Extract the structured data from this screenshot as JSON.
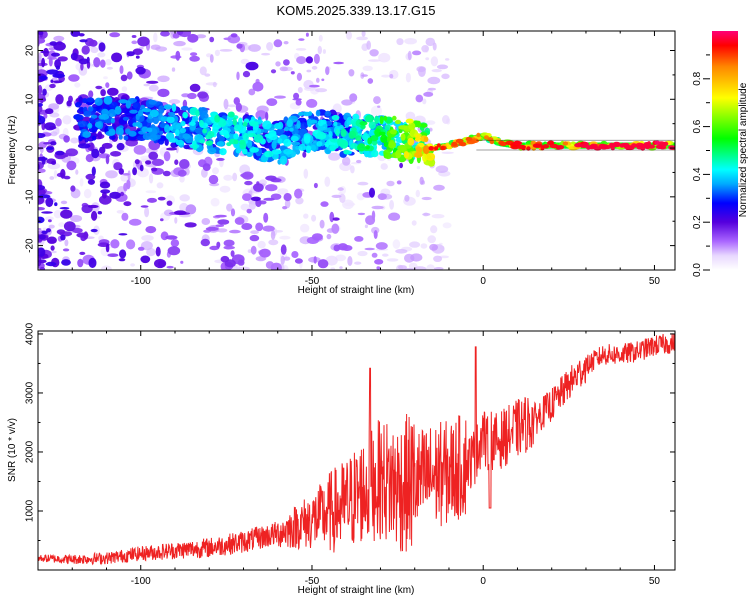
{
  "title": "KOM5.2025.339.13.17.G15",
  "chart_data": [
    {
      "type": "heatmap",
      "title": "KOM5.2025.339.13.17.G15",
      "xlabel": "Height of straight line (km)",
      "ylabel": "Frequency (Hz)",
      "xlim": [
        -130,
        56
      ],
      "ylim": [
        -25,
        24
      ],
      "x_ticks": [
        -100,
        -50,
        0,
        50
      ],
      "y_ticks": [
        -20,
        -10,
        0,
        10,
        20
      ],
      "colorbar": {
        "label": "Normalized spectral amplitude",
        "range": [
          0,
          1
        ],
        "ticks": [
          0.0,
          0.2,
          0.4,
          0.6,
          0.8
        ],
        "colors": [
          "#ffffff",
          "#cc99ff",
          "#6600cc",
          "#0000ff",
          "#00ffff",
          "#00ff00",
          "#ffff00",
          "#ff0000",
          "#ff0066"
        ]
      },
      "ridge": [
        {
          "x": -100,
          "y": 6,
          "a": 0.35
        },
        {
          "x": -90,
          "y": 4.5,
          "a": 0.4
        },
        {
          "x": -80,
          "y": 3.5,
          "a": 0.45
        },
        {
          "x": -70,
          "y": 2.5,
          "a": 0.45
        },
        {
          "x": -60,
          "y": 1,
          "a": 0.4
        },
        {
          "x": -50,
          "y": 4,
          "a": 0.4
        },
        {
          "x": -40,
          "y": 2.5,
          "a": 0.45
        },
        {
          "x": -30,
          "y": 2.5,
          "a": 0.55
        },
        {
          "x": -20,
          "y": 1.5,
          "a": 0.75
        },
        {
          "x": -15,
          "y": 0,
          "a": 0.9
        },
        {
          "x": -10,
          "y": 0.5,
          "a": 0.85
        },
        {
          "x": -5,
          "y": 1.5,
          "a": 0.85
        },
        {
          "x": 0,
          "y": 2.5,
          "a": 0.8
        },
        {
          "x": 5,
          "y": 1,
          "a": 0.85
        },
        {
          "x": 10,
          "y": 0.5,
          "a": 0.9
        },
        {
          "x": 20,
          "y": 0.5,
          "a": 0.9
        },
        {
          "x": 30,
          "y": 0.5,
          "a": 0.95
        },
        {
          "x": 40,
          "y": 0.5,
          "a": 0.95
        },
        {
          "x": 50,
          "y": 0.5,
          "a": 0.95
        },
        {
          "x": 56,
          "y": 0.5,
          "a": 0.95
        }
      ]
    },
    {
      "type": "line",
      "xlabel": "Height of straight line (km)",
      "ylabel": "SNR (10 * v/v)",
      "xlim": [
        -130,
        56
      ],
      "ylim": [
        0,
        4050
      ],
      "x_ticks": [
        -100,
        -50,
        0,
        50
      ],
      "y_ticks": [
        1000,
        2000,
        3000,
        4000
      ],
      "color": "#ee2222",
      "series": [
        {
          "x": [
            -130,
            -120,
            -110,
            -100,
            -90,
            -80,
            -70,
            -60,
            -50,
            -40,
            -35,
            -30,
            -25,
            -20,
            -15,
            -10,
            -5,
            -2,
            0,
            1,
            2,
            3,
            5,
            10,
            15,
            20,
            25,
            30,
            35,
            40,
            45,
            50,
            56
          ],
          "values": [
            200,
            180,
            200,
            280,
            330,
            380,
            480,
            620,
            840,
            1100,
            1350,
            1550,
            1420,
            1480,
            1600,
            1650,
            1800,
            1950,
            2400,
            2050,
            2300,
            2150,
            2200,
            2400,
            2550,
            2800,
            3150,
            3450,
            3650,
            3650,
            3700,
            3800,
            3850
          ]
        }
      ]
    }
  ]
}
